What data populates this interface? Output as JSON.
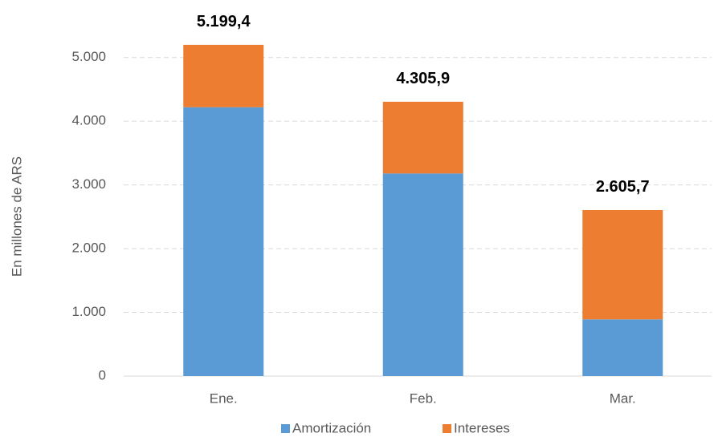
{
  "chart_data": {
    "type": "stacked_bar",
    "y_axis_label": "En millones de ARS",
    "categories": [
      "Ene.",
      "Feb.",
      "Mar."
    ],
    "series": [
      {
        "name": "Amortización",
        "color": "#5b9bd5",
        "values": [
          4220,
          3180,
          890
        ]
      },
      {
        "name": "Intereses",
        "color": "#ed7d31",
        "values": [
          979.4,
          1125.9,
          1715.7
        ]
      }
    ],
    "totals": [
      5199.4,
      4305.9,
      2605.7
    ],
    "total_labels": [
      "5.199,4",
      "4.305,9",
      "2.605,7"
    ],
    "ylim": [
      0,
      5500
    ],
    "yticks": [
      0,
      {
        "value": 1000,
        "label": "1.000"
      },
      {
        "value": 2000,
        "label": "2.000"
      },
      {
        "value": 3000,
        "label": "3.000"
      },
      {
        "value": 4000,
        "label": "4.000"
      },
      {
        "value": 5000,
        "label": "5.000"
      }
    ],
    "grid": true,
    "legend": "bottom"
  }
}
